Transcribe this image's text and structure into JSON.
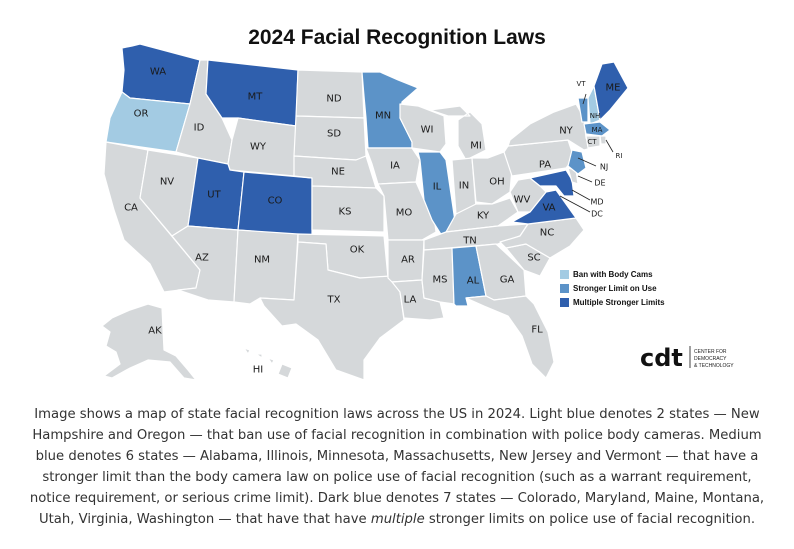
{
  "title": "2024 Facial Recognition Laws",
  "colors": {
    "no_law": "#d5d8da",
    "ban_with_body_cams": "#a3cbe3",
    "stronger_limit_on_use": "#5c93c8",
    "multiple_stronger_limits": "#2f5fad"
  },
  "legend": {
    "ban_label": "Ban with Body Cams",
    "stronger_label": "Stronger Limit on Use",
    "multiple_label": "Multiple Stronger Limits"
  },
  "states": {
    "WA": "WA",
    "OR": "OR",
    "CA": "CA",
    "NV": "NV",
    "ID": "ID",
    "MT": "MT",
    "WY": "WY",
    "UT": "UT",
    "CO": "CO",
    "AZ": "AZ",
    "NM": "NM",
    "ND": "ND",
    "SD": "SD",
    "NE": "NE",
    "KS": "KS",
    "OK": "OK",
    "TX": "TX",
    "MN": "MN",
    "IA": "IA",
    "MO": "MO",
    "AR": "AR",
    "LA": "LA",
    "WI": "WI",
    "IL": "IL",
    "MI": "MI",
    "IN": "IN",
    "OH": "OH",
    "KY": "KY",
    "TN": "TN",
    "MS": "MS",
    "AL": "AL",
    "GA": "GA",
    "FL": "FL",
    "SC": "SC",
    "NC": "NC",
    "VA": "VA",
    "WV": "WV",
    "PA": "PA",
    "NY": "NY",
    "VT": "VT",
    "NH": "NH",
    "ME": "ME",
    "MA": "MA",
    "RI": "RI",
    "CT": "CT",
    "NJ": "NJ",
    "DE": "DE",
    "MD": "MD",
    "DC": "DC",
    "AK": "AK",
    "HI": "HI"
  },
  "logo": {
    "mark": "cdt",
    "line1": "CENTER FOR",
    "line2": "DEMOCRACY",
    "line3": "& TECHNOLOGY"
  },
  "caption": {
    "part1": "Image shows a map of state facial recognition laws across the US in 2024. Light blue denotes 2 states — New Hampshire and Oregon — that ban use of facial recognition in combination with police body cameras. Medium blue denotes 6 states — Alabama, Illinois, Minnesota, Massachusetts, New Jersey and Vermont — that have a stronger limit than the body camera law on police use of facial recognition (such as a warrant requirement, notice requirement, or serious crime limit). Dark blue denotes 7 states — Colorado, Maryland, Maine, Montana, Utah, Virginia, Washington — that have that have ",
    "emphasis": "multiple",
    "part2": " stronger limits on police use of facial recognition."
  }
}
